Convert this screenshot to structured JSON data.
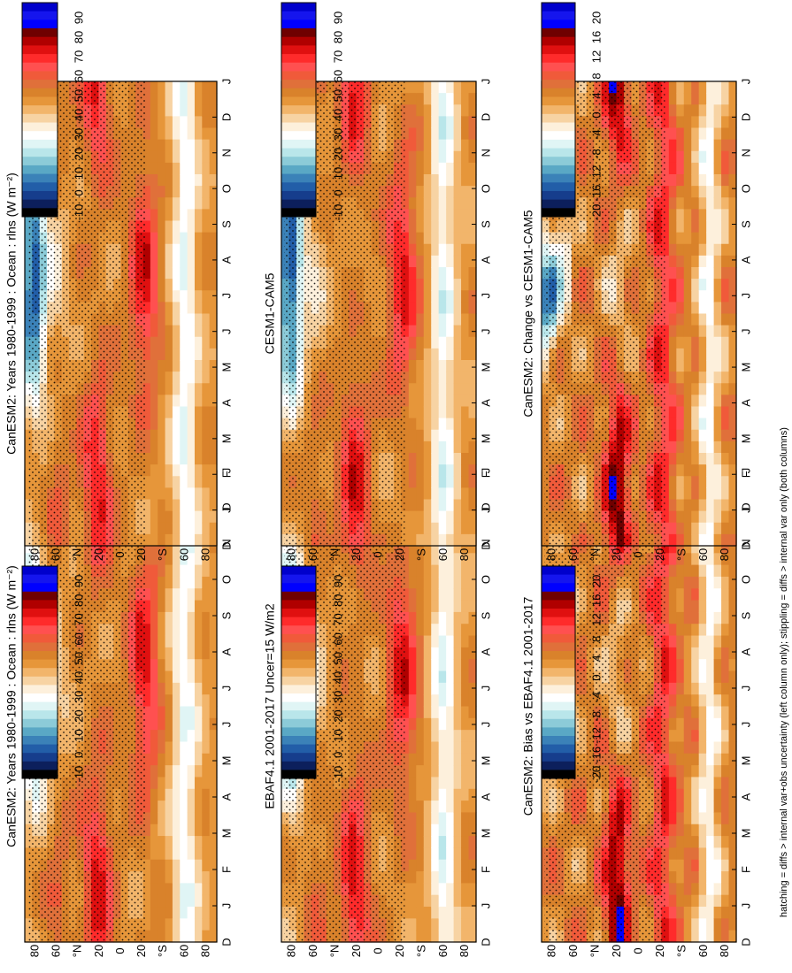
{
  "figure": {
    "footnote": "hatching = diffs > internal var+obs uncertainty (left column only); stippling = diffs > internal var only (both columns)",
    "months": [
      "D",
      "J",
      "F",
      "M",
      "A",
      "M",
      "J",
      "J",
      "A",
      "S",
      "O",
      "N",
      "D",
      "J"
    ],
    "lat_labels": [
      "80",
      "60",
      "°N",
      "20",
      "0",
      "20",
      "°S",
      "60",
      "80"
    ]
  },
  "colorbars": {
    "absolute": {
      "labels": [
        "90",
        "80",
        "70",
        "60",
        "50",
        "40",
        "30",
        "20",
        "10",
        "0",
        "-10"
      ],
      "colors": [
        "#0000cc",
        "#1515ee",
        "#0000ff",
        "#6f0000",
        "#b00000",
        "#e01010",
        "#ff2b2b",
        "#ff5050",
        "#f05a3a",
        "#e0703a",
        "#d9822b",
        "#e6963a",
        "#f2b56b",
        "#f7d3a3",
        "#fdf0dc",
        "#ffffff",
        "#e0f5f5",
        "#b9e6ea",
        "#8ccbd8",
        "#5aa8c5",
        "#3b82b8",
        "#225ea8",
        "#163d8c",
        "#0c1f5c",
        "#000000"
      ]
    },
    "difference": {
      "labels": [
        "20",
        "16",
        "12",
        "8",
        "4",
        "0",
        "-4",
        "-8",
        "-12",
        "-16",
        "-20"
      ],
      "colors": [
        "#0000cc",
        "#1515ee",
        "#0000ff",
        "#6f0000",
        "#b00000",
        "#e01010",
        "#ff2b2b",
        "#ff5050",
        "#f05a3a",
        "#e0703a",
        "#d9822b",
        "#e6963a",
        "#f2b56b",
        "#f7d3a3",
        "#fdf0dc",
        "#ffffff",
        "#e0f5f5",
        "#b9e6ea",
        "#8ccbd8",
        "#5aa8c5",
        "#3b82b8",
        "#225ea8",
        "#163d8c",
        "#0c1f5c",
        "#000000"
      ]
    }
  },
  "chart_data": [
    {
      "type": "heatmap",
      "panel": "top-left",
      "title": "CanESM2: Years 1980-1999 : Ocean : rlns (W m⁻²)",
      "x": "month",
      "y": "latitude",
      "colorbar": "absolute",
      "zlim": [
        -10,
        90
      ],
      "hatching": true,
      "stippling": true
    },
    {
      "type": "heatmap",
      "panel": "top-right",
      "title": "CanESM2: Years 1980-1999 : Ocean : rlns (W m⁻²)",
      "x": "month",
      "y": "latitude",
      "colorbar": "absolute",
      "zlim": [
        -10,
        90
      ],
      "hatching": false,
      "stippling": true
    },
    {
      "type": "heatmap",
      "panel": "middle-left",
      "title": "EBAF4.1 2001-2017 Uncer=15 W/m2",
      "x": "month",
      "y": "latitude",
      "colorbar": "absolute",
      "zlim": [
        -10,
        90
      ],
      "hatching": true,
      "stippling": true
    },
    {
      "type": "heatmap",
      "panel": "middle-right",
      "title": "CESM1-CAM5",
      "x": "month",
      "y": "latitude",
      "colorbar": "absolute",
      "zlim": [
        -10,
        90
      ],
      "hatching": false,
      "stippling": true
    },
    {
      "type": "heatmap",
      "panel": "bottom-left",
      "title": "CanESM2: Bias vs EBAF4.1 2001-2017",
      "x": "month",
      "y": "latitude",
      "colorbar": "difference",
      "zlim": [
        -20,
        20
      ],
      "hatching": true,
      "stippling": true
    },
    {
      "type": "heatmap",
      "panel": "bottom-right",
      "title": "CanESM2: Change vs CESM1-CAM5",
      "x": "month",
      "y": "latitude",
      "colorbar": "difference",
      "zlim": [
        -20,
        20
      ],
      "hatching": false,
      "stippling": true
    }
  ]
}
